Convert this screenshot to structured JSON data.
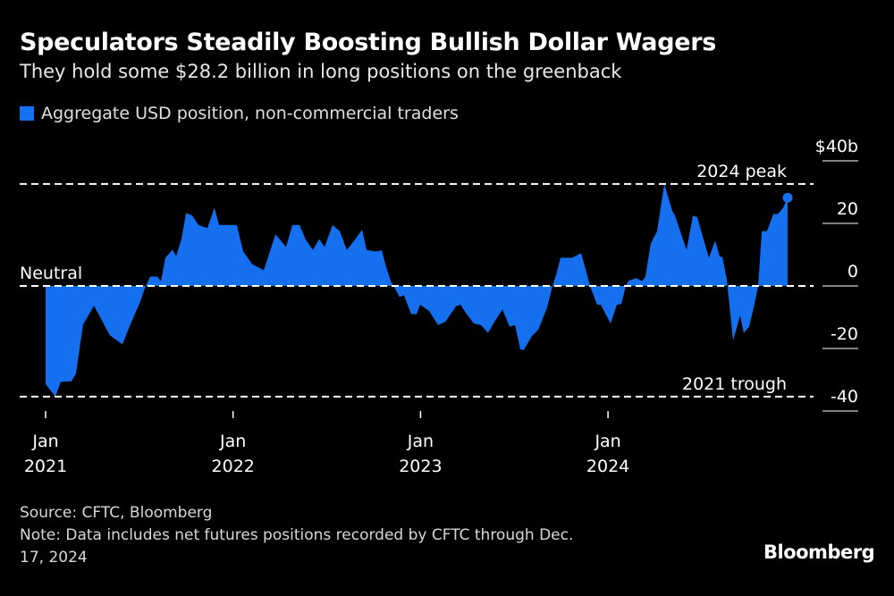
{
  "chart_data": {
    "type": "area",
    "title": "Speculators Steadily Boosting Bullish Dollar Wagers",
    "subtitle": "They hold some $28.2 billion in long positions on the greenback",
    "legend": [
      {
        "label": "Aggregate USD position, non-commercial traders",
        "color": "#1570ef"
      }
    ],
    "legend_position": "top-left",
    "ylim": [
      -40,
      40
    ],
    "yticks": [
      40,
      20,
      0,
      -20,
      -40
    ],
    "ytick_labels": [
      "$40b",
      "20",
      "0",
      "-20",
      "-40"
    ],
    "xticks": [
      {
        "x": 2021,
        "line1": "Jan",
        "line2": "2021"
      },
      {
        "x": 2022,
        "line1": "Jan",
        "line2": "2022"
      },
      {
        "x": 2023,
        "line1": "Jan",
        "line2": "2023"
      },
      {
        "x": 2024,
        "line1": "Jan",
        "line2": "2024"
      }
    ],
    "reference_lines": [
      {
        "label": "2024 peak",
        "value": 32.6
      },
      {
        "label": "Neutral",
        "value": 0
      },
      {
        "label": "2021 trough",
        "value": -35.4
      }
    ],
    "series": [
      {
        "name": "Aggregate USD position, non-commercial traders",
        "unit": "USD billions",
        "points": [
          [
            2021.0,
            -31.4
          ],
          [
            2021.052,
            -35.4
          ],
          [
            2021.081,
            -30.7
          ],
          [
            2021.138,
            -30.5
          ],
          [
            2021.162,
            -28
          ],
          [
            2021.2,
            -12.4
          ],
          [
            2021.258,
            -6.3
          ],
          [
            2021.343,
            -15.8
          ],
          [
            2021.41,
            -18.7
          ],
          [
            2021.448,
            -13
          ],
          [
            2021.505,
            -5
          ],
          [
            2021.534,
            0
          ],
          [
            2021.558,
            3
          ],
          [
            2021.596,
            3
          ],
          [
            2021.615,
            1.5
          ],
          [
            2021.639,
            9
          ],
          [
            2021.677,
            11.6
          ],
          [
            2021.696,
            9.5
          ],
          [
            2021.725,
            15
          ],
          [
            2021.749,
            23.3
          ],
          [
            2021.782,
            22.5
          ],
          [
            2021.815,
            19.5
          ],
          [
            2021.863,
            18.5
          ],
          [
            2021.901,
            25
          ],
          [
            2021.925,
            19.5
          ],
          [
            2021.987,
            19.5
          ],
          [
            2022.02,
            19.5
          ],
          [
            2022.054,
            11
          ],
          [
            2022.102,
            7
          ],
          [
            2022.164,
            5
          ],
          [
            2022.226,
            16.5
          ],
          [
            2022.283,
            12.5
          ],
          [
            2022.316,
            19.5
          ],
          [
            2022.354,
            19.5
          ],
          [
            2022.388,
            14.8
          ],
          [
            2022.426,
            11.5
          ],
          [
            2022.459,
            15
          ],
          [
            2022.488,
            12.5
          ],
          [
            2022.531,
            19.5
          ],
          [
            2022.569,
            17.5
          ],
          [
            2022.607,
            11.5
          ],
          [
            2022.65,
            14.8
          ],
          [
            2022.688,
            18
          ],
          [
            2022.712,
            11.5
          ],
          [
            2022.76,
            11
          ],
          [
            2022.793,
            11.4
          ],
          [
            2022.817,
            6
          ],
          [
            2022.841,
            1.5
          ],
          [
            2022.865,
            -1
          ],
          [
            2022.888,
            -3.5
          ],
          [
            2022.912,
            -3
          ],
          [
            2022.95,
            -9
          ],
          [
            2022.979,
            -9
          ],
          [
            2022.998,
            -6
          ],
          [
            2023.046,
            -8
          ],
          [
            2023.093,
            -12.5
          ],
          [
            2023.132,
            -11.5
          ],
          [
            2023.189,
            -6.5
          ],
          [
            2023.213,
            -6
          ],
          [
            2023.246,
            -9
          ],
          [
            2023.284,
            -12
          ],
          [
            2023.322,
            -12.5
          ],
          [
            2023.36,
            -15
          ],
          [
            2023.389,
            -12
          ],
          [
            2023.437,
            -7.5
          ],
          [
            2023.475,
            -13
          ],
          [
            2023.504,
            -12.5
          ],
          [
            2023.532,
            -20.3
          ],
          [
            2023.551,
            -20.5
          ],
          [
            2023.594,
            -16
          ],
          [
            2023.628,
            -14
          ],
          [
            2023.675,
            -7
          ],
          [
            2023.704,
            0
          ],
          [
            2023.723,
            3.5
          ],
          [
            2023.747,
            9
          ],
          [
            2023.809,
            9
          ],
          [
            2023.857,
            10.5
          ],
          [
            2023.904,
            0
          ],
          [
            2023.942,
            -6
          ],
          [
            2023.961,
            -6
          ],
          [
            2024.014,
            -12
          ],
          [
            2024.047,
            -6
          ],
          [
            2024.071,
            -5.8
          ],
          [
            2024.095,
            0
          ],
          [
            2024.109,
            1.7
          ],
          [
            2024.152,
            2.5
          ],
          [
            2024.181,
            1.5
          ],
          [
            2024.2,
            3
          ],
          [
            2024.228,
            13.5
          ],
          [
            2024.262,
            17.5
          ],
          [
            2024.3,
            32.6
          ],
          [
            2024.343,
            24
          ],
          [
            2024.357,
            22.5
          ],
          [
            2024.419,
            11.5
          ],
          [
            2024.453,
            22.5
          ],
          [
            2024.476,
            22
          ],
          [
            2024.538,
            9
          ],
          [
            2024.572,
            14.5
          ],
          [
            2024.596,
            9.3
          ],
          [
            2024.61,
            9.3
          ],
          [
            2024.634,
            2
          ],
          [
            2024.667,
            -17.5
          ],
          [
            2024.705,
            -9.5
          ],
          [
            2024.724,
            -15
          ],
          [
            2024.753,
            -13
          ],
          [
            2024.777,
            -7
          ],
          [
            2024.801,
            0
          ],
          [
            2024.82,
            17.5
          ],
          [
            2024.848,
            17.5
          ],
          [
            2024.882,
            23
          ],
          [
            2024.906,
            23
          ],
          [
            2024.934,
            25
          ],
          [
            2024.958,
            28.2
          ]
        ],
        "last_value": 28.2
      }
    ]
  },
  "footer": {
    "source": "Source: CFTC, Bloomberg",
    "note_line1": "Note: Data includes net futures positions recorded by CFTC through Dec.",
    "note_line2": "17, 2024"
  },
  "brand": "Bloomberg",
  "colors": {
    "series": "#1570ef",
    "background": "#000000",
    "text": "#ffffff"
  }
}
